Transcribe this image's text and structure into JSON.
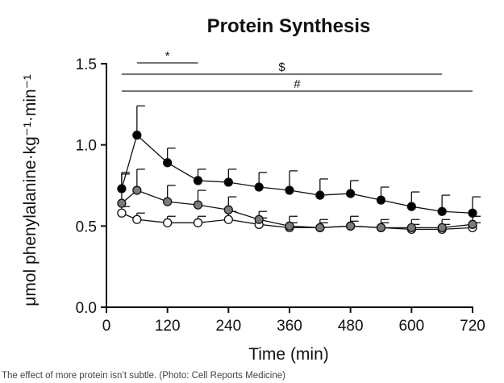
{
  "chart_data": {
    "type": "line",
    "title": "Protein Synthesis",
    "xlabel": "Time (min)",
    "ylabel": "μmol phenylalanine·kg⁻¹·min⁻¹",
    "x_ticks": [
      0,
      120,
      240,
      360,
      480,
      600,
      720
    ],
    "y_ticks": [
      "0.0",
      "0.5",
      "1.0",
      "1.5"
    ],
    "xlim": [
      0,
      720
    ],
    "ylim": [
      0,
      1.5
    ],
    "x": [
      30,
      60,
      120,
      180,
      240,
      300,
      360,
      420,
      480,
      540,
      600,
      660,
      720
    ],
    "series": [
      {
        "marker": "filled-black",
        "color": "#000000",
        "values": [
          0.73,
          1.06,
          0.89,
          0.78,
          0.77,
          0.74,
          0.72,
          0.69,
          0.7,
          0.66,
          0.62,
          0.59,
          0.58
        ],
        "errors": [
          0.1,
          0.18,
          0.09,
          0.07,
          0.08,
          0.09,
          0.12,
          0.1,
          0.08,
          0.08,
          0.09,
          0.1,
          0.1
        ]
      },
      {
        "marker": "filled-gray",
        "color": "#7a7a7a",
        "values": [
          0.64,
          0.72,
          0.65,
          0.63,
          0.6,
          0.54,
          0.5,
          0.49,
          0.5,
          0.49,
          0.49,
          0.49,
          0.51
        ],
        "errors": [
          0.18,
          0.13,
          0.1,
          0.09,
          0.08,
          0.05,
          0.06,
          0.05,
          0.06,
          0.05,
          0.05,
          0.05,
          0.05
        ]
      },
      {
        "marker": "open",
        "color": "#ffffff",
        "values": [
          0.58,
          0.54,
          0.52,
          0.52,
          0.54,
          0.51,
          0.49,
          0.49,
          0.5,
          0.49,
          0.48,
          0.48,
          0.49
        ],
        "errors": [
          0.04,
          0.04,
          0.04,
          0.04,
          0.05,
          0.04,
          0.03,
          0.03,
          0.03,
          0.03,
          0.03,
          0.03,
          0.03
        ]
      }
    ],
    "significance": [
      {
        "symbol": "*",
        "x_start": 60,
        "x_end": 180
      },
      {
        "symbol": "$",
        "x_start": 30,
        "x_end": 660
      },
      {
        "symbol": "#",
        "x_start": 30,
        "x_end": 720
      }
    ],
    "grid": false,
    "legend": "none"
  },
  "caption": "The effect of more protein isn’t subtle. (Photo: Cell Reports Medicine)"
}
